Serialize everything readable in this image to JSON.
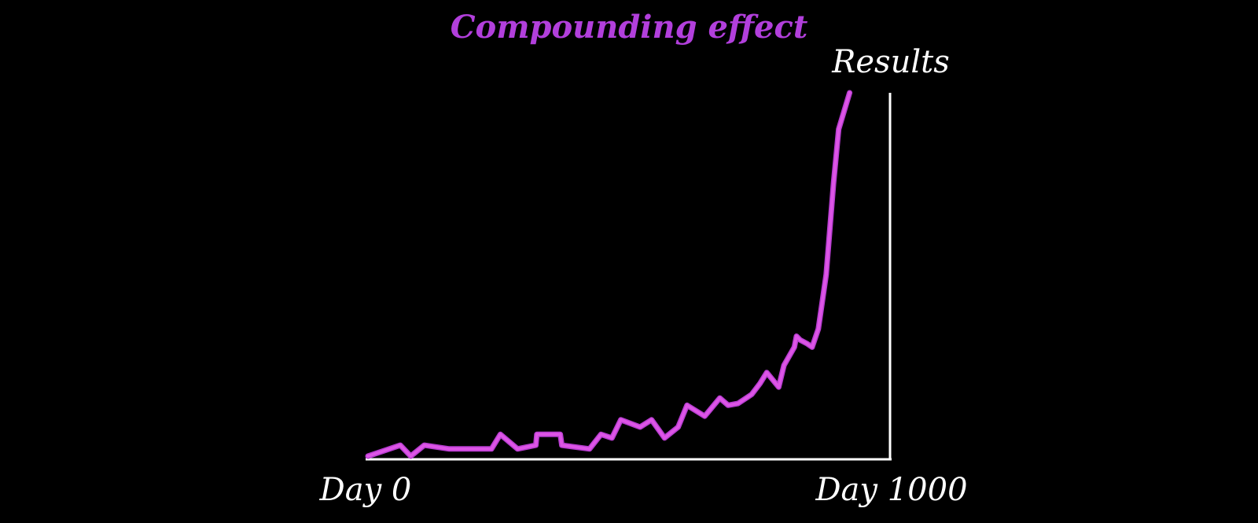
{
  "chart_data": {
    "type": "line",
    "title": "Compounding effect",
    "ylabel": "Results",
    "x_start_label": "Day 0",
    "x_end_label": "Day 1000",
    "xlim": [
      0,
      1000
    ],
    "ylim": [
      0,
      100
    ],
    "series": [
      {
        "x": [
          0,
          62,
          82,
          108,
          156,
          237,
          254,
          287,
          322,
          324,
          369,
          372,
          425,
          447,
          468,
          485,
          522,
          544,
          569,
          595,
          612,
          646,
          675,
          691,
          710,
          736,
          752,
          765,
          788,
          798,
          818,
          822,
          829,
          842,
          852,
          864,
          879,
          893,
          903,
          924
        ],
        "y": [
          0,
          3,
          0,
          3,
          2,
          2,
          6,
          2,
          3,
          6,
          6,
          3,
          2,
          6,
          5,
          10,
          8,
          10,
          5,
          8,
          14,
          11,
          16,
          14,
          14.5,
          17,
          20,
          23,
          19,
          25,
          30,
          33,
          32,
          31,
          30,
          35,
          50,
          75,
          90,
          100
        ]
      }
    ],
    "colors": {
      "background": "#000000",
      "title": "#b23fdc",
      "line": "#dd55e6",
      "line_shadow": "#b73dd0",
      "axis": "#ffffff",
      "text": "#ffffff"
    }
  }
}
